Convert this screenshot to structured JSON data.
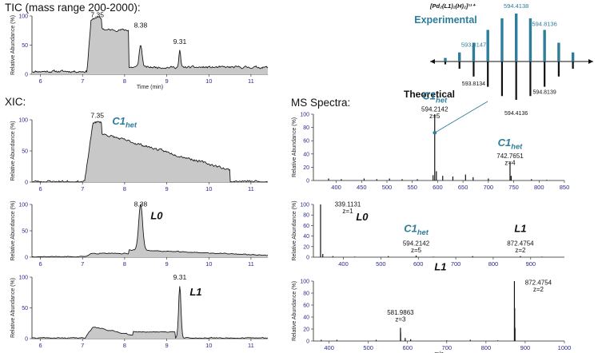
{
  "labels": {
    "tic_title": "TIC (mass range 200-2000):",
    "xic_title": "XIC:",
    "ms_title": "MS Spectra:",
    "formula_text": "[Pd₂(L1)₂(H)₂]¹¹⁺",
    "experimental": "Experimental",
    "theoretical": "Theoretical",
    "time_axis": "Time (min)",
    "mz_axis": "m/z",
    "rel_abundance": "Relative Abundance (%)"
  },
  "colors": {
    "accent": "#2e7d9a",
    "fill": "#c8c8c8",
    "line": "#1a1a1a",
    "tick": "#2a2a8a"
  },
  "chart_data": [
    {
      "id": "tic",
      "type": "line",
      "title": "TIC (mass range 200-2000):",
      "xlabel": "Time (min)",
      "ylabel": "Relative Abundance (%)",
      "xlim": [
        5.8,
        11.4
      ],
      "ylim": [
        0,
        100
      ],
      "xticks": [
        6,
        7,
        8,
        9,
        10,
        11
      ],
      "grid": false,
      "baseline": 5,
      "bands": [
        {
          "start": 7.1,
          "end": 7.45,
          "rise": 0.1,
          "level": 90,
          "edge": "none"
        },
        {
          "start": 7.45,
          "end": 8.1,
          "level": 76,
          "edge": "none"
        },
        {
          "start": 8.1,
          "end": 11.4,
          "level": 12,
          "edge": "none"
        }
      ],
      "noise": 3,
      "peaks": [
        {
          "x": 7.35,
          "h": 8,
          "w": 0.12
        },
        {
          "x": 8.38,
          "h": 38,
          "w": 0.05
        },
        {
          "x": 9.31,
          "h": 28,
          "w": 0.03
        }
      ],
      "annotations": [
        {
          "x": 7.35,
          "y": 98,
          "text": "7.35"
        },
        {
          "x": 8.38,
          "y": 80,
          "text": "8.38"
        },
        {
          "x": 9.31,
          "y": 52,
          "text": "9.31"
        }
      ]
    },
    {
      "id": "xic_c1",
      "type": "line",
      "xlim": [
        5.8,
        11.4
      ],
      "ylim": [
        0,
        100
      ],
      "xticks": [
        6,
        7,
        8,
        9,
        10,
        11
      ],
      "baseline": 1,
      "bands": [
        {
          "start": 7.05,
          "end": 7.45,
          "rise": 0.2,
          "level": 96,
          "edge": "none"
        },
        {
          "start": 7.45,
          "end": 10.5,
          "level": 78,
          "edge": "decay"
        }
      ],
      "noise": 3,
      "peaks": [],
      "annotations": [
        {
          "x": 7.35,
          "y": 103,
          "text": "7.35"
        }
      ],
      "label": {
        "main": "C1",
        "sub": "het"
      }
    },
    {
      "id": "xic_l0",
      "type": "line",
      "xlim": [
        5.8,
        11.4
      ],
      "ylim": [
        0,
        100
      ],
      "xticks": [
        6,
        7,
        8,
        9,
        10,
        11
      ],
      "baseline": 1,
      "bands": [
        {
          "start": 7.05,
          "end": 8.1,
          "rise": 0.15,
          "level": 7,
          "edge": "none"
        },
        {
          "start": 8.1,
          "end": 11.4,
          "level": 14,
          "edge": "decay"
        }
      ],
      "noise": 1.2,
      "peaks": [
        {
          "x": 8.38,
          "h": 88,
          "w": 0.065
        }
      ],
      "annotations": [
        {
          "x": 8.38,
          "y": 96,
          "text": "8.38"
        }
      ],
      "label": {
        "main": "L0",
        "sub": ""
      }
    },
    {
      "id": "xic_l1",
      "type": "line",
      "xlim": [
        5.8,
        11.4
      ],
      "ylim": [
        0,
        100
      ],
      "xticks": [
        6,
        7,
        8,
        9,
        10,
        11
      ],
      "baseline": 1,
      "bands": [
        {
          "start": 7.05,
          "end": 8.2,
          "rise": 0.2,
          "level": 22,
          "edge": "decay"
        },
        {
          "start": 8.2,
          "end": 9.2,
          "level": 11,
          "edge": "none"
        }
      ],
      "noise": 1.2,
      "peaks": [
        {
          "x": 9.31,
          "h": 85,
          "w": 0.04
        }
      ],
      "annotations": [
        {
          "x": 9.31,
          "y": 96,
          "text": "9.31"
        }
      ],
      "label": {
        "main": "L1",
        "sub": ""
      }
    },
    {
      "id": "ms_c1",
      "type": "bar",
      "xlabel": "",
      "xlim": [
        355,
        850
      ],
      "ylim": [
        0,
        100
      ],
      "xticks": [
        400,
        450,
        500,
        550,
        600,
        650,
        700,
        750,
        800,
        850
      ],
      "peaks": [
        {
          "mz": 594.2142,
          "h": 100
        },
        {
          "mz": 742.7651,
          "h": 28
        },
        {
          "mz": 597.5,
          "h": 14
        },
        {
          "mz": 591,
          "h": 8
        },
        {
          "mz": 610,
          "h": 7
        },
        {
          "mz": 630,
          "h": 6
        },
        {
          "mz": 655,
          "h": 9
        },
        {
          "mz": 670,
          "h": 5
        },
        {
          "mz": 745,
          "h": 7
        },
        {
          "mz": 385,
          "h": 3
        },
        {
          "mz": 410,
          "h": 2
        },
        {
          "mz": 455,
          "h": 3
        },
        {
          "mz": 480,
          "h": 2
        },
        {
          "mz": 505,
          "h": 3
        },
        {
          "mz": 530,
          "h": 2
        },
        {
          "mz": 560,
          "h": 2
        },
        {
          "mz": 700,
          "h": 3
        },
        {
          "mz": 785,
          "h": 2
        },
        {
          "mz": 815,
          "h": 1
        }
      ],
      "annotations": [
        {
          "mz": 594.2142,
          "y": 104,
          "lines": [
            "594.2142",
            "z=5"
          ]
        },
        {
          "mz": 742.7651,
          "y": 34,
          "lines": [
            "742.7651",
            "z=4"
          ]
        }
      ],
      "species": [
        {
          "mz": 594.2142,
          "y": 122,
          "main": "C1",
          "sub": "het"
        },
        {
          "mz": 742.7651,
          "y": 52,
          "main": "C1",
          "sub": "het"
        }
      ]
    },
    {
      "id": "ms_l0",
      "type": "bar",
      "xlim": [
        320,
        990
      ],
      "ylim": [
        0,
        100
      ],
      "xticks": [
        400,
        500,
        600,
        700,
        800,
        900
      ],
      "peaks": [
        {
          "mz": 339.1131,
          "h": 100
        },
        {
          "mz": 594.2142,
          "h": 3
        },
        {
          "mz": 872.4754,
          "h": 2
        },
        {
          "mz": 345,
          "h": 6
        },
        {
          "mz": 372,
          "h": 2
        },
        {
          "mz": 430,
          "h": 1
        },
        {
          "mz": 520,
          "h": 2
        },
        {
          "mz": 640,
          "h": 1
        },
        {
          "mz": 745,
          "h": 2
        },
        {
          "mz": 930,
          "h": 1
        }
      ],
      "annotations": [
        {
          "mz": 339.1131,
          "y": 96,
          "lines": [
            "339.1131",
            "z=1"
          ],
          "offset": 34
        },
        {
          "mz": 594.2142,
          "y": 22,
          "lines": [
            "594.2142",
            "z=5"
          ]
        },
        {
          "mz": 872.4754,
          "y": 22,
          "lines": [
            "872.4754",
            "z=2"
          ]
        }
      ],
      "species": [
        {
          "mz": 339.1131,
          "y": 70,
          "main": "L0",
          "sub": "",
          "offset": 52
        },
        {
          "mz": 594.2142,
          "y": 48,
          "main": "C1",
          "sub": "het"
        },
        {
          "mz": 872.4754,
          "y": 48,
          "main": "L1",
          "sub": ""
        }
      ]
    },
    {
      "id": "ms_l1",
      "type": "bar",
      "xlabel": "m/z",
      "xlim": [
        360,
        1000
      ],
      "ylim": [
        0,
        100
      ],
      "xticks": [
        400,
        500,
        600,
        700,
        800,
        900,
        1000
      ],
      "peaks": [
        {
          "mz": 872.4754,
          "h": 100
        },
        {
          "mz": 873.2,
          "h": 55
        },
        {
          "mz": 874,
          "h": 22
        },
        {
          "mz": 581.9863,
          "h": 22
        },
        {
          "mz": 582.4,
          "h": 14
        },
        {
          "mz": 594,
          "h": 5
        },
        {
          "mz": 608,
          "h": 3
        },
        {
          "mz": 380,
          "h": 2
        },
        {
          "mz": 420,
          "h": 2
        },
        {
          "mz": 520,
          "h": 2
        },
        {
          "mz": 700,
          "h": 1
        },
        {
          "mz": 760,
          "h": 2
        },
        {
          "mz": 830,
          "h": 1
        }
      ],
      "annotations": [
        {
          "mz": 581.9863,
          "y": 44,
          "lines": [
            "581.9863",
            "z=3"
          ]
        },
        {
          "mz": 872.4754,
          "y": 94,
          "lines": [
            "872.4754",
            "z=2"
          ],
          "offset": 30
        }
      ],
      "species": [
        {
          "mz": 581.9863,
          "y": 118,
          "main": "L1",
          "sub": "",
          "offset": 50
        }
      ]
    },
    {
      "id": "isotope",
      "type": "bar",
      "title": "Experimental",
      "xlim": [
        593.2,
        595.5
      ],
      "step": 0.2,
      "start": 593.414,
      "count": 10,
      "center": 594.4138,
      "exp_peaks": [
        {
          "mz": 593.8147,
          "label": "593.8147"
        },
        {
          "mz": 594.4138,
          "label": "594.4138"
        },
        {
          "mz": 594.8136,
          "label": "594.8136"
        }
      ],
      "theo_peaks": [
        {
          "mz": 593.8134,
          "label": "593.8134"
        },
        {
          "mz": 594.4136,
          "label": "594.4136"
        },
        {
          "mz": 594.8139,
          "label": "594.8139"
        }
      ]
    }
  ]
}
